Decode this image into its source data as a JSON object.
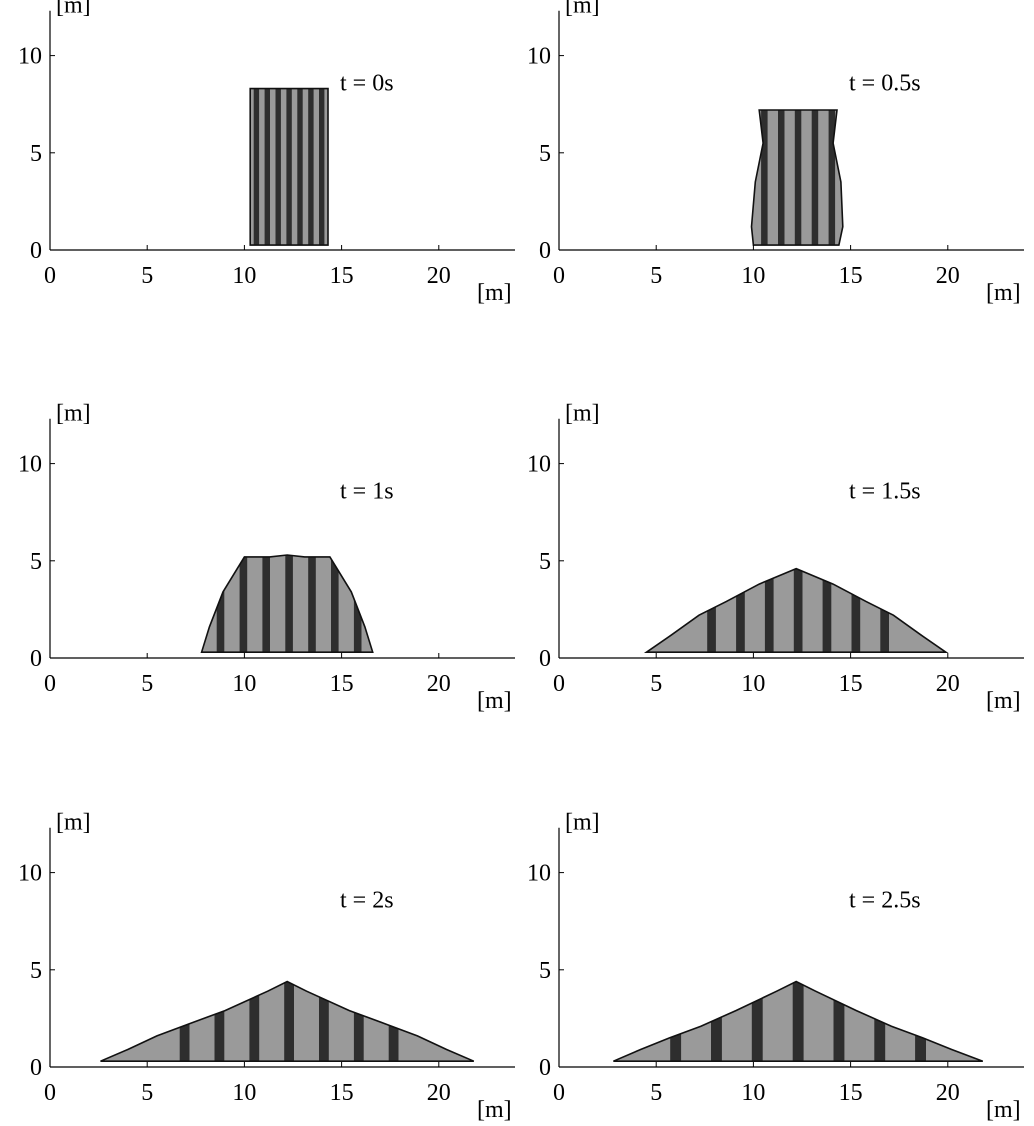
{
  "figure": {
    "axis_unit_label": "[m]",
    "time_label_prefix": "t = "
  },
  "colors": {
    "background": "#ffffff",
    "axis": "#000000",
    "light_material": "#9a9a9a",
    "dark_material": "#2e2e2e"
  },
  "chart_data": [
    {
      "type": "area",
      "time_label": "t = 0s",
      "time_s": 0,
      "xlabel": "[m]",
      "ylabel": "[m]",
      "xlim": [
        0,
        24
      ],
      "ylim": [
        0,
        12
      ],
      "xticks": [
        0,
        5,
        10,
        15,
        20
      ],
      "yticks": [
        0,
        5,
        10
      ],
      "grid": false,
      "profile": [
        [
          10.3,
          0.25
        ],
        [
          10.3,
          8.3
        ],
        [
          14.3,
          8.3
        ],
        [
          14.3,
          0.25
        ]
      ]
    },
    {
      "type": "area",
      "time_label": "t = 0.5s",
      "time_s": 0.5,
      "xlabel": "[m]",
      "ylabel": "[m]",
      "xlim": [
        0,
        24
      ],
      "ylim": [
        0,
        12
      ],
      "xticks": [
        0,
        5,
        10,
        15,
        20
      ],
      "yticks": [
        0,
        5,
        10
      ],
      "grid": false,
      "profile": [
        [
          10.0,
          0.25
        ],
        [
          9.9,
          1.2
        ],
        [
          10.1,
          3.5
        ],
        [
          10.5,
          5.5
        ],
        [
          10.3,
          7.2
        ],
        [
          11.3,
          7.2
        ],
        [
          12.3,
          7.2
        ],
        [
          13.3,
          7.2
        ],
        [
          14.3,
          7.2
        ],
        [
          14.1,
          5.5
        ],
        [
          14.5,
          3.5
        ],
        [
          14.6,
          1.2
        ],
        [
          14.4,
          0.25
        ]
      ]
    },
    {
      "type": "area",
      "time_label": "t = 1s",
      "time_s": 1,
      "xlabel": "[m]",
      "ylabel": "[m]",
      "xlim": [
        0,
        24
      ],
      "ylim": [
        0,
        12
      ],
      "xticks": [
        0,
        5,
        10,
        15,
        20
      ],
      "yticks": [
        0,
        5,
        10
      ],
      "grid": false,
      "profile": [
        [
          7.8,
          0.3
        ],
        [
          8.2,
          1.6
        ],
        [
          8.9,
          3.4
        ],
        [
          10.0,
          5.2
        ],
        [
          11.3,
          5.2
        ],
        [
          12.2,
          5.3
        ],
        [
          13.1,
          5.2
        ],
        [
          14.4,
          5.2
        ],
        [
          15.5,
          3.4
        ],
        [
          16.2,
          1.6
        ],
        [
          16.6,
          0.3
        ]
      ]
    },
    {
      "type": "area",
      "time_label": "t = 1.5s",
      "time_s": 1.5,
      "xlabel": "[m]",
      "ylabel": "[m]",
      "xlim": [
        0,
        24
      ],
      "ylim": [
        0,
        12
      ],
      "xticks": [
        0,
        5,
        10,
        15,
        20
      ],
      "yticks": [
        0,
        5,
        10
      ],
      "grid": false,
      "profile": [
        [
          4.5,
          0.3
        ],
        [
          5.8,
          1.2
        ],
        [
          7.2,
          2.2
        ],
        [
          8.6,
          2.9
        ],
        [
          10.3,
          3.8
        ],
        [
          12.2,
          4.6
        ],
        [
          14.1,
          3.8
        ],
        [
          15.8,
          2.9
        ],
        [
          17.2,
          2.2
        ],
        [
          18.6,
          1.2
        ],
        [
          19.9,
          0.3
        ]
      ]
    },
    {
      "type": "area",
      "time_label": "t = 2s",
      "time_s": 2,
      "xlabel": "[m]",
      "ylabel": "[m]",
      "xlim": [
        0,
        24
      ],
      "ylim": [
        0,
        12
      ],
      "xticks": [
        0,
        5,
        10,
        15,
        20
      ],
      "yticks": [
        0,
        5,
        10
      ],
      "grid": false,
      "profile": [
        [
          2.6,
          0.3
        ],
        [
          4.0,
          0.9
        ],
        [
          5.5,
          1.6
        ],
        [
          7.1,
          2.2
        ],
        [
          9.0,
          2.9
        ],
        [
          11.2,
          3.9
        ],
        [
          12.2,
          4.4
        ],
        [
          13.2,
          3.9
        ],
        [
          15.4,
          2.9
        ],
        [
          17.3,
          2.2
        ],
        [
          18.9,
          1.6
        ],
        [
          20.4,
          0.9
        ],
        [
          21.8,
          0.3
        ]
      ]
    },
    {
      "type": "area",
      "time_label": "t = 2.5s",
      "time_s": 2.5,
      "xlabel": "[m]",
      "ylabel": "[m]",
      "xlim": [
        0,
        24
      ],
      "ylim": [
        0,
        12
      ],
      "xticks": [
        0,
        5,
        10,
        15,
        20
      ],
      "yticks": [
        0,
        5,
        10
      ],
      "grid": false,
      "profile": [
        [
          2.8,
          0.3
        ],
        [
          4.2,
          0.9
        ],
        [
          5.7,
          1.5
        ],
        [
          7.3,
          2.1
        ],
        [
          9.1,
          2.9
        ],
        [
          11.2,
          3.9
        ],
        [
          12.2,
          4.4
        ],
        [
          13.2,
          3.9
        ],
        [
          15.3,
          2.9
        ],
        [
          17.1,
          2.1
        ],
        [
          18.7,
          1.5
        ],
        [
          20.2,
          0.9
        ],
        [
          21.8,
          0.3
        ]
      ]
    }
  ]
}
